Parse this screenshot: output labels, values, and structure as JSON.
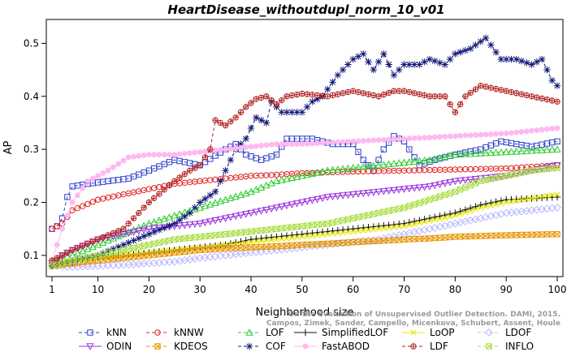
{
  "chart_data": {
    "type": "line",
    "title": "HeartDisease_withoutdupl_norm_10_v01",
    "xlabel": "Neighborhood size",
    "ylabel": "AP",
    "xlim": [
      1,
      100
    ],
    "ylim": [
      0.06,
      0.545
    ],
    "xticks": [
      1,
      10,
      20,
      30,
      40,
      50,
      60,
      70,
      80,
      90,
      100
    ],
    "yticks": [
      0.1,
      0.2,
      0.3,
      0.4,
      0.5
    ],
    "grid": false,
    "legend_position": "bottom",
    "watermark": [
      "On the Evaluation of Unsupervised Outlier Detection. DAMI, 2015.",
      "Campos, Zimek, Sander, Campello, Micenkova, Schubert, Assent, Houle"
    ],
    "series": [
      {
        "name": "kNN",
        "color": "#2a3fcc",
        "marker": "square",
        "dash": "4,3",
        "keypoints": [
          [
            1,
            0.15
          ],
          [
            2,
            0.155
          ],
          [
            3,
            0.17
          ],
          [
            4,
            0.21
          ],
          [
            5,
            0.23
          ],
          [
            8,
            0.235
          ],
          [
            12,
            0.24
          ],
          [
            16,
            0.245
          ],
          [
            20,
            0.26
          ],
          [
            25,
            0.28
          ],
          [
            30,
            0.27
          ],
          [
            35,
            0.3
          ],
          [
            37,
            0.31
          ],
          [
            39,
            0.29
          ],
          [
            42,
            0.28
          ],
          [
            45,
            0.29
          ],
          [
            47,
            0.32
          ],
          [
            52,
            0.32
          ],
          [
            56,
            0.31
          ],
          [
            60,
            0.31
          ],
          [
            62,
            0.28
          ],
          [
            64,
            0.26
          ],
          [
            66,
            0.3
          ],
          [
            68,
            0.325
          ],
          [
            70,
            0.315
          ],
          [
            73,
            0.27
          ],
          [
            76,
            0.28
          ],
          [
            80,
            0.29
          ],
          [
            85,
            0.3
          ],
          [
            89,
            0.315
          ],
          [
            95,
            0.305
          ],
          [
            100,
            0.315
          ]
        ]
      },
      {
        "name": "kNNW",
        "color": "#e02020",
        "marker": "circle",
        "dash": "4,3",
        "keypoints": [
          [
            1,
            0.15
          ],
          [
            3,
            0.16
          ],
          [
            5,
            0.185
          ],
          [
            10,
            0.205
          ],
          [
            15,
            0.215
          ],
          [
            20,
            0.225
          ],
          [
            25,
            0.235
          ],
          [
            30,
            0.24
          ],
          [
            35,
            0.245
          ],
          [
            40,
            0.25
          ],
          [
            45,
            0.252
          ],
          [
            50,
            0.255
          ],
          [
            60,
            0.258
          ],
          [
            70,
            0.26
          ],
          [
            80,
            0.262
          ],
          [
            90,
            0.264
          ],
          [
            100,
            0.27
          ]
        ]
      },
      {
        "name": "LOF",
        "color": "#2dcc2d",
        "marker": "triangle",
        "dash": "4,3",
        "keypoints": [
          [
            1,
            0.09
          ],
          [
            5,
            0.1
          ],
          [
            10,
            0.12
          ],
          [
            15,
            0.14
          ],
          [
            20,
            0.16
          ],
          [
            25,
            0.175
          ],
          [
            30,
            0.19
          ],
          [
            35,
            0.205
          ],
          [
            40,
            0.22
          ],
          [
            45,
            0.24
          ],
          [
            50,
            0.25
          ],
          [
            55,
            0.26
          ],
          [
            60,
            0.265
          ],
          [
            65,
            0.27
          ],
          [
            70,
            0.275
          ],
          [
            75,
            0.28
          ],
          [
            80,
            0.29
          ],
          [
            90,
            0.295
          ],
          [
            100,
            0.3
          ]
        ]
      },
      {
        "name": "SimplifiedLOF",
        "color": "#111111",
        "marker": "plus",
        "dash": "",
        "keypoints": [
          [
            1,
            0.09
          ],
          [
            5,
            0.085
          ],
          [
            8,
            0.095
          ],
          [
            15,
            0.1
          ],
          [
            20,
            0.105
          ],
          [
            25,
            0.11
          ],
          [
            30,
            0.115
          ],
          [
            35,
            0.12
          ],
          [
            40,
            0.13
          ],
          [
            45,
            0.135
          ],
          [
            50,
            0.14
          ],
          [
            55,
            0.145
          ],
          [
            60,
            0.15
          ],
          [
            65,
            0.155
          ],
          [
            70,
            0.16
          ],
          [
            75,
            0.17
          ],
          [
            80,
            0.18
          ],
          [
            85,
            0.195
          ],
          [
            90,
            0.205
          ],
          [
            100,
            0.21
          ]
        ]
      },
      {
        "name": "LoOP",
        "color": "#e6e600",
        "marker": "x",
        "dash": "",
        "keypoints": [
          [
            1,
            0.09
          ],
          [
            5,
            0.09
          ],
          [
            10,
            0.095
          ],
          [
            15,
            0.1
          ],
          [
            20,
            0.105
          ],
          [
            25,
            0.11
          ],
          [
            30,
            0.115
          ],
          [
            35,
            0.12
          ],
          [
            40,
            0.125
          ],
          [
            45,
            0.13
          ],
          [
            50,
            0.135
          ],
          [
            55,
            0.14
          ],
          [
            60,
            0.145
          ],
          [
            65,
            0.15
          ],
          [
            70,
            0.155
          ],
          [
            75,
            0.165
          ],
          [
            80,
            0.175
          ],
          [
            85,
            0.19
          ],
          [
            90,
            0.2
          ],
          [
            100,
            0.215
          ]
        ]
      },
      {
        "name": "LDOF",
        "color": "#b8b8ff",
        "marker": "diamond",
        "dash": "4,3",
        "keypoints": [
          [
            1,
            0.08
          ],
          [
            5,
            0.078
          ],
          [
            10,
            0.08
          ],
          [
            15,
            0.082
          ],
          [
            20,
            0.085
          ],
          [
            25,
            0.088
          ],
          [
            30,
            0.095
          ],
          [
            35,
            0.1
          ],
          [
            40,
            0.105
          ],
          [
            45,
            0.11
          ],
          [
            50,
            0.115
          ],
          [
            55,
            0.12
          ],
          [
            60,
            0.125
          ],
          [
            65,
            0.13
          ],
          [
            70,
            0.14
          ],
          [
            75,
            0.15
          ],
          [
            80,
            0.16
          ],
          [
            85,
            0.17
          ],
          [
            90,
            0.18
          ],
          [
            100,
            0.19
          ]
        ]
      },
      {
        "name": "ODIN",
        "color": "#9933dd",
        "marker": "triangle-down",
        "dash": "",
        "keypoints": [
          [
            1,
            0.08
          ],
          [
            3,
            0.1
          ],
          [
            5,
            0.11
          ],
          [
            10,
            0.13
          ],
          [
            15,
            0.14
          ],
          [
            20,
            0.15
          ],
          [
            25,
            0.155
          ],
          [
            30,
            0.16
          ],
          [
            35,
            0.17
          ],
          [
            40,
            0.18
          ],
          [
            45,
            0.19
          ],
          [
            50,
            0.2
          ],
          [
            55,
            0.21
          ],
          [
            60,
            0.215
          ],
          [
            65,
            0.22
          ],
          [
            70,
            0.225
          ],
          [
            75,
            0.23
          ],
          [
            80,
            0.24
          ],
          [
            85,
            0.245
          ],
          [
            90,
            0.25
          ],
          [
            100,
            0.27
          ]
        ]
      },
      {
        "name": "KDEOS",
        "color": "#e69500",
        "marker": "square-x",
        "dash": "4,3",
        "keypoints": [
          [
            1,
            0.08
          ],
          [
            5,
            0.085
          ],
          [
            10,
            0.09
          ],
          [
            15,
            0.095
          ],
          [
            20,
            0.1
          ],
          [
            25,
            0.105
          ],
          [
            30,
            0.11
          ],
          [
            35,
            0.113
          ],
          [
            40,
            0.115
          ],
          [
            45,
            0.117
          ],
          [
            50,
            0.12
          ],
          [
            55,
            0.122
          ],
          [
            60,
            0.125
          ],
          [
            65,
            0.127
          ],
          [
            70,
            0.13
          ],
          [
            75,
            0.132
          ],
          [
            80,
            0.135
          ],
          [
            90,
            0.138
          ],
          [
            100,
            0.14
          ]
        ]
      },
      {
        "name": "COF",
        "color": "#101878",
        "marker": "star",
        "dash": "4,3",
        "keypoints": [
          [
            1,
            0.08
          ],
          [
            5,
            0.09
          ],
          [
            10,
            0.1
          ],
          [
            15,
            0.12
          ],
          [
            20,
            0.14
          ],
          [
            25,
            0.16
          ],
          [
            28,
            0.18
          ],
          [
            30,
            0.2
          ],
          [
            33,
            0.22
          ],
          [
            35,
            0.26
          ],
          [
            37,
            0.3
          ],
          [
            39,
            0.32
          ],
          [
            41,
            0.36
          ],
          [
            43,
            0.35
          ],
          [
            44,
            0.39
          ],
          [
            46,
            0.37
          ],
          [
            50,
            0.37
          ],
          [
            52,
            0.39
          ],
          [
            54,
            0.4
          ],
          [
            57,
            0.44
          ],
          [
            60,
            0.47
          ],
          [
            62,
            0.48
          ],
          [
            64,
            0.45
          ],
          [
            66,
            0.48
          ],
          [
            68,
            0.44
          ],
          [
            70,
            0.46
          ],
          [
            73,
            0.46
          ],
          [
            75,
            0.47
          ],
          [
            78,
            0.46
          ],
          [
            80,
            0.48
          ],
          [
            83,
            0.49
          ],
          [
            86,
            0.51
          ],
          [
            89,
            0.47
          ],
          [
            92,
            0.47
          ],
          [
            95,
            0.46
          ],
          [
            97,
            0.47
          ],
          [
            99,
            0.43
          ],
          [
            100,
            0.42
          ]
        ]
      },
      {
        "name": "FastABOD",
        "color": "#ffb8f0",
        "marker": "dot",
        "dash": "",
        "keypoints": [
          [
            1,
            0.09
          ],
          [
            3,
            0.15
          ],
          [
            5,
            0.2
          ],
          [
            8,
            0.24
          ],
          [
            12,
            0.26
          ],
          [
            16,
            0.285
          ],
          [
            20,
            0.29
          ],
          [
            25,
            0.29
          ],
          [
            30,
            0.295
          ],
          [
            35,
            0.3
          ],
          [
            40,
            0.305
          ],
          [
            45,
            0.31
          ],
          [
            50,
            0.31
          ],
          [
            60,
            0.315
          ],
          [
            70,
            0.32
          ],
          [
            80,
            0.325
          ],
          [
            90,
            0.33
          ],
          [
            100,
            0.34
          ]
        ]
      },
      {
        "name": "LDF",
        "color": "#b22222",
        "marker": "circle-plus",
        "dash": "4,3",
        "keypoints": [
          [
            1,
            0.09
          ],
          [
            5,
            0.11
          ],
          [
            10,
            0.13
          ],
          [
            15,
            0.15
          ],
          [
            20,
            0.2
          ],
          [
            25,
            0.24
          ],
          [
            28,
            0.26
          ],
          [
            30,
            0.27
          ],
          [
            32,
            0.3
          ],
          [
            33,
            0.355
          ],
          [
            35,
            0.345
          ],
          [
            37,
            0.36
          ],
          [
            39,
            0.38
          ],
          [
            41,
            0.395
          ],
          [
            43,
            0.4
          ],
          [
            45,
            0.385
          ],
          [
            47,
            0.4
          ],
          [
            50,
            0.405
          ],
          [
            55,
            0.4
          ],
          [
            60,
            0.41
          ],
          [
            65,
            0.4
          ],
          [
            68,
            0.41
          ],
          [
            70,
            0.41
          ],
          [
            75,
            0.4
          ],
          [
            78,
            0.4
          ],
          [
            80,
            0.37
          ],
          [
            82,
            0.4
          ],
          [
            85,
            0.42
          ],
          [
            90,
            0.41
          ],
          [
            95,
            0.4
          ],
          [
            100,
            0.39
          ]
        ]
      },
      {
        "name": "INFLO",
        "color": "#a8dd40",
        "marker": "hourglass",
        "dash": "4,3",
        "keypoints": [
          [
            1,
            0.08
          ],
          [
            5,
            0.09
          ],
          [
            10,
            0.1
          ],
          [
            15,
            0.11
          ],
          [
            20,
            0.12
          ],
          [
            25,
            0.13
          ],
          [
            30,
            0.135
          ],
          [
            35,
            0.14
          ],
          [
            40,
            0.145
          ],
          [
            45,
            0.15
          ],
          [
            50,
            0.155
          ],
          [
            55,
            0.16
          ],
          [
            60,
            0.17
          ],
          [
            65,
            0.18
          ],
          [
            70,
            0.19
          ],
          [
            75,
            0.205
          ],
          [
            80,
            0.22
          ],
          [
            85,
            0.24
          ],
          [
            90,
            0.25
          ],
          [
            95,
            0.26
          ],
          [
            100,
            0.265
          ]
        ]
      }
    ]
  }
}
